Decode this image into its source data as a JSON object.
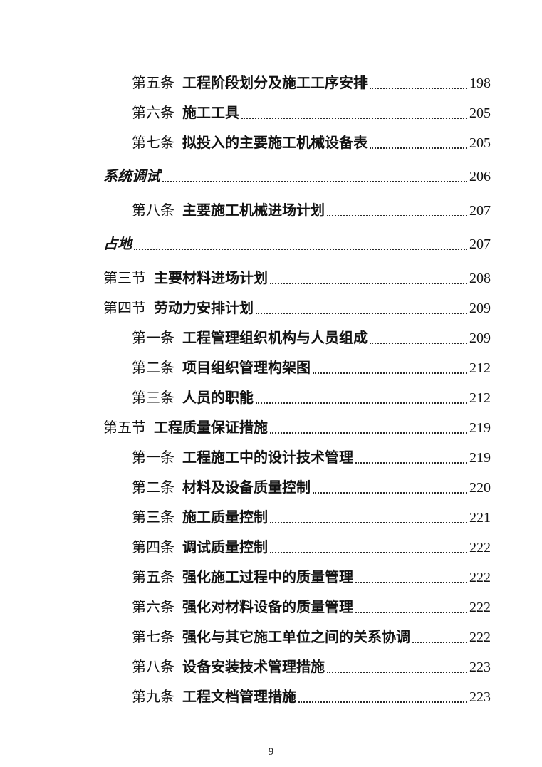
{
  "page": {
    "footer_page_number": "9"
  },
  "toc": {
    "entries": [
      {
        "label": "第五条",
        "title": "工程阶段划分及施工工序安排",
        "page": "198",
        "level": 2,
        "style": "item"
      },
      {
        "label": "第六条",
        "title": "施工工具",
        "page": "205",
        "level": 2,
        "style": "item"
      },
      {
        "label": "第七条",
        "title": "拟投入的主要施工机械设备表",
        "page": "205",
        "level": 2,
        "style": "item"
      },
      {
        "label": "",
        "title": "系统调试",
        "page": "206",
        "level": 1,
        "style": "chapter"
      },
      {
        "label": "第八条",
        "title": "主要施工机械进场计划",
        "page": "207",
        "level": 2,
        "style": "item"
      },
      {
        "label": "",
        "title": "占地",
        "page": "207",
        "level": 1,
        "style": "chapter"
      },
      {
        "label": "第三节",
        "title": "主要材料进场计划",
        "page": "208",
        "level": 1,
        "style": "item"
      },
      {
        "label": "第四节",
        "title": "劳动力安排计划",
        "page": "209",
        "level": 1,
        "style": "item"
      },
      {
        "label": "第一条",
        "title": "工程管理组织机构与人员组成",
        "page": "209",
        "level": 2,
        "style": "item"
      },
      {
        "label": "第二条",
        "title": "项目组织管理构架图",
        "page": "212",
        "level": 2,
        "style": "item"
      },
      {
        "label": "第三条",
        "title": "人员的职能",
        "page": "212",
        "level": 2,
        "style": "item"
      },
      {
        "label": "第五节",
        "title": "工程质量保证措施",
        "page": "219",
        "level": 1,
        "style": "item"
      },
      {
        "label": "第一条",
        "title": "工程施工中的设计技术管理",
        "page": "219",
        "level": 2,
        "style": "item"
      },
      {
        "label": "第二条",
        "title": "材料及设备质量控制",
        "page": "220",
        "level": 2,
        "style": "item"
      },
      {
        "label": "第三条",
        "title": "施工质量控制",
        "page": "221",
        "level": 2,
        "style": "item"
      },
      {
        "label": "第四条",
        "title": "调试质量控制",
        "page": "222",
        "level": 2,
        "style": "item"
      },
      {
        "label": "第五条",
        "title": "强化施工过程中的质量管理",
        "page": "222",
        "level": 2,
        "style": "item"
      },
      {
        "label": "第六条",
        "title": "强化对材料设备的质量管理",
        "page": "222",
        "level": 2,
        "style": "item"
      },
      {
        "label": "第七条",
        "title": "强化与其它施工单位之间的关系协调",
        "page": "222",
        "level": 2,
        "style": "item"
      },
      {
        "label": "第八条",
        "title": "设备安装技术管理措施",
        "page": "223",
        "level": 2,
        "style": "item"
      },
      {
        "label": "第九条",
        "title": "工程文档管理措施",
        "page": "223",
        "level": 2,
        "style": "item"
      }
    ]
  }
}
